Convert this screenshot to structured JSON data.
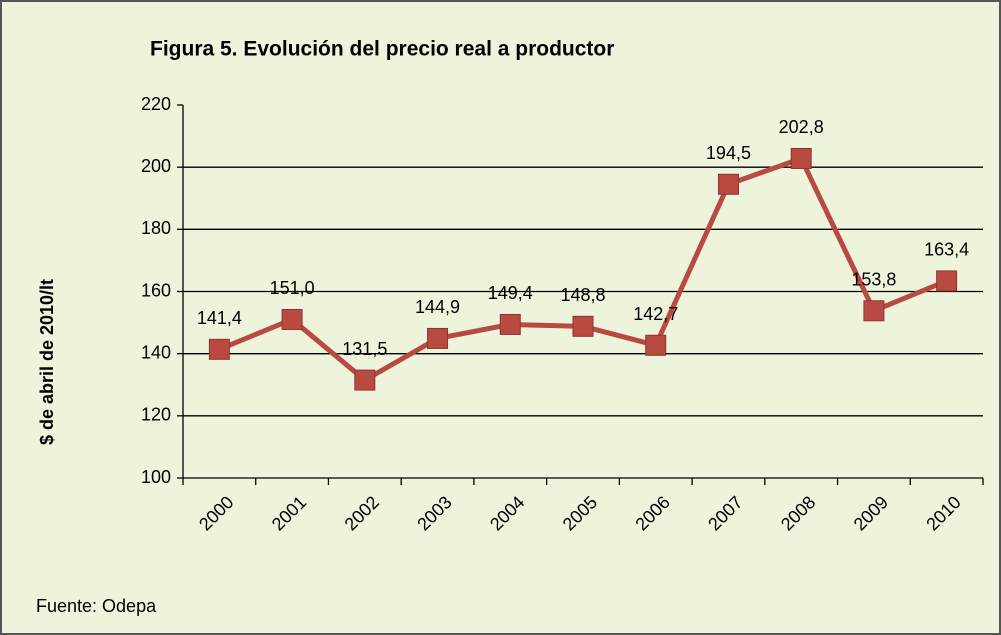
{
  "chart_data": {
    "type": "line",
    "title": "Figura 5. Evolución del precio real a productor",
    "y_label": "$ de abril de 2010/lt",
    "source": "Fuente: Odepa",
    "categories": [
      "2000",
      "2001",
      "2002",
      "2003",
      "2004",
      "2005",
      "2006",
      "2007",
      "2008",
      "2009",
      "2010"
    ],
    "series": [
      {
        "name": "Precio real a productor",
        "color": "#b84a42",
        "values": [
          141.4,
          151.0,
          131.5,
          144.9,
          149.4,
          148.8,
          142.7,
          194.5,
          202.8,
          153.8,
          163.4
        ],
        "value_labels": [
          "141,4",
          "151,0",
          "131,5",
          "144,9",
          "149,4",
          "148,8",
          "142,7",
          "194,5",
          "202,8",
          "153,8",
          "163,4"
        ]
      }
    ],
    "ylim": [
      100,
      220
    ],
    "yticks": [
      100,
      120,
      140,
      160,
      180,
      200,
      220
    ],
    "grid": true
  }
}
